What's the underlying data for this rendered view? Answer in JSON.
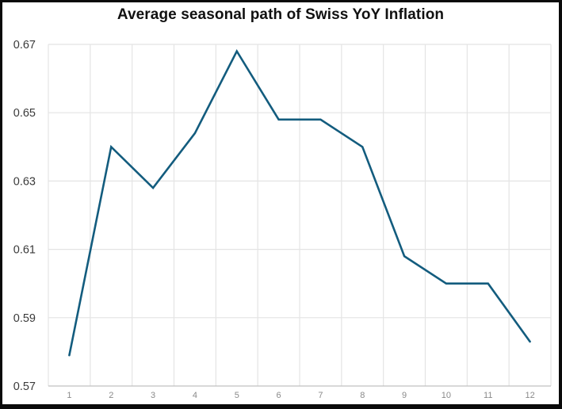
{
  "chart_data": {
    "type": "line",
    "title": "Average seasonal path of Swiss YoY Inflation",
    "xlabel": "",
    "ylabel": "",
    "categories": [
      "1",
      "2",
      "3",
      "4",
      "5",
      "6",
      "7",
      "8",
      "9",
      "10",
      "11",
      "12"
    ],
    "series": [
      {
        "name": "Average seasonal path of Swiss YoY Inflation",
        "values": [
          0.579,
          0.64,
          0.628,
          0.644,
          0.668,
          0.648,
          0.648,
          0.64,
          0.608,
          0.6,
          0.6,
          0.583
        ]
      }
    ],
    "values": [
      0.579,
      0.64,
      0.628,
      0.644,
      0.668,
      0.648,
      0.648,
      0.64,
      0.608,
      0.6,
      0.6,
      0.583
    ],
    "ylim": [
      0.57,
      0.67
    ],
    "y_ticks": [
      0.57,
      0.59,
      0.61,
      0.63,
      0.65,
      0.67
    ],
    "y_tick_labels": [
      "0.57",
      "0.59",
      "0.61",
      "0.63",
      "0.65",
      "0.67"
    ],
    "grid": "on",
    "legend": "none",
    "gridline_style": "vertical gridlines fall between category labels (cell borders); data points centered in cells",
    "line_color": "#135c7e",
    "colors": {
      "line": "#135c7e",
      "gridline": "#e4e4e4",
      "axis_line": "#c0c0c0",
      "y_label": "#3a3a3a",
      "x_label": "#8a8a8a",
      "title": "#111111",
      "background": "#ffffff",
      "frame_border": "#0a0a0a"
    }
  }
}
